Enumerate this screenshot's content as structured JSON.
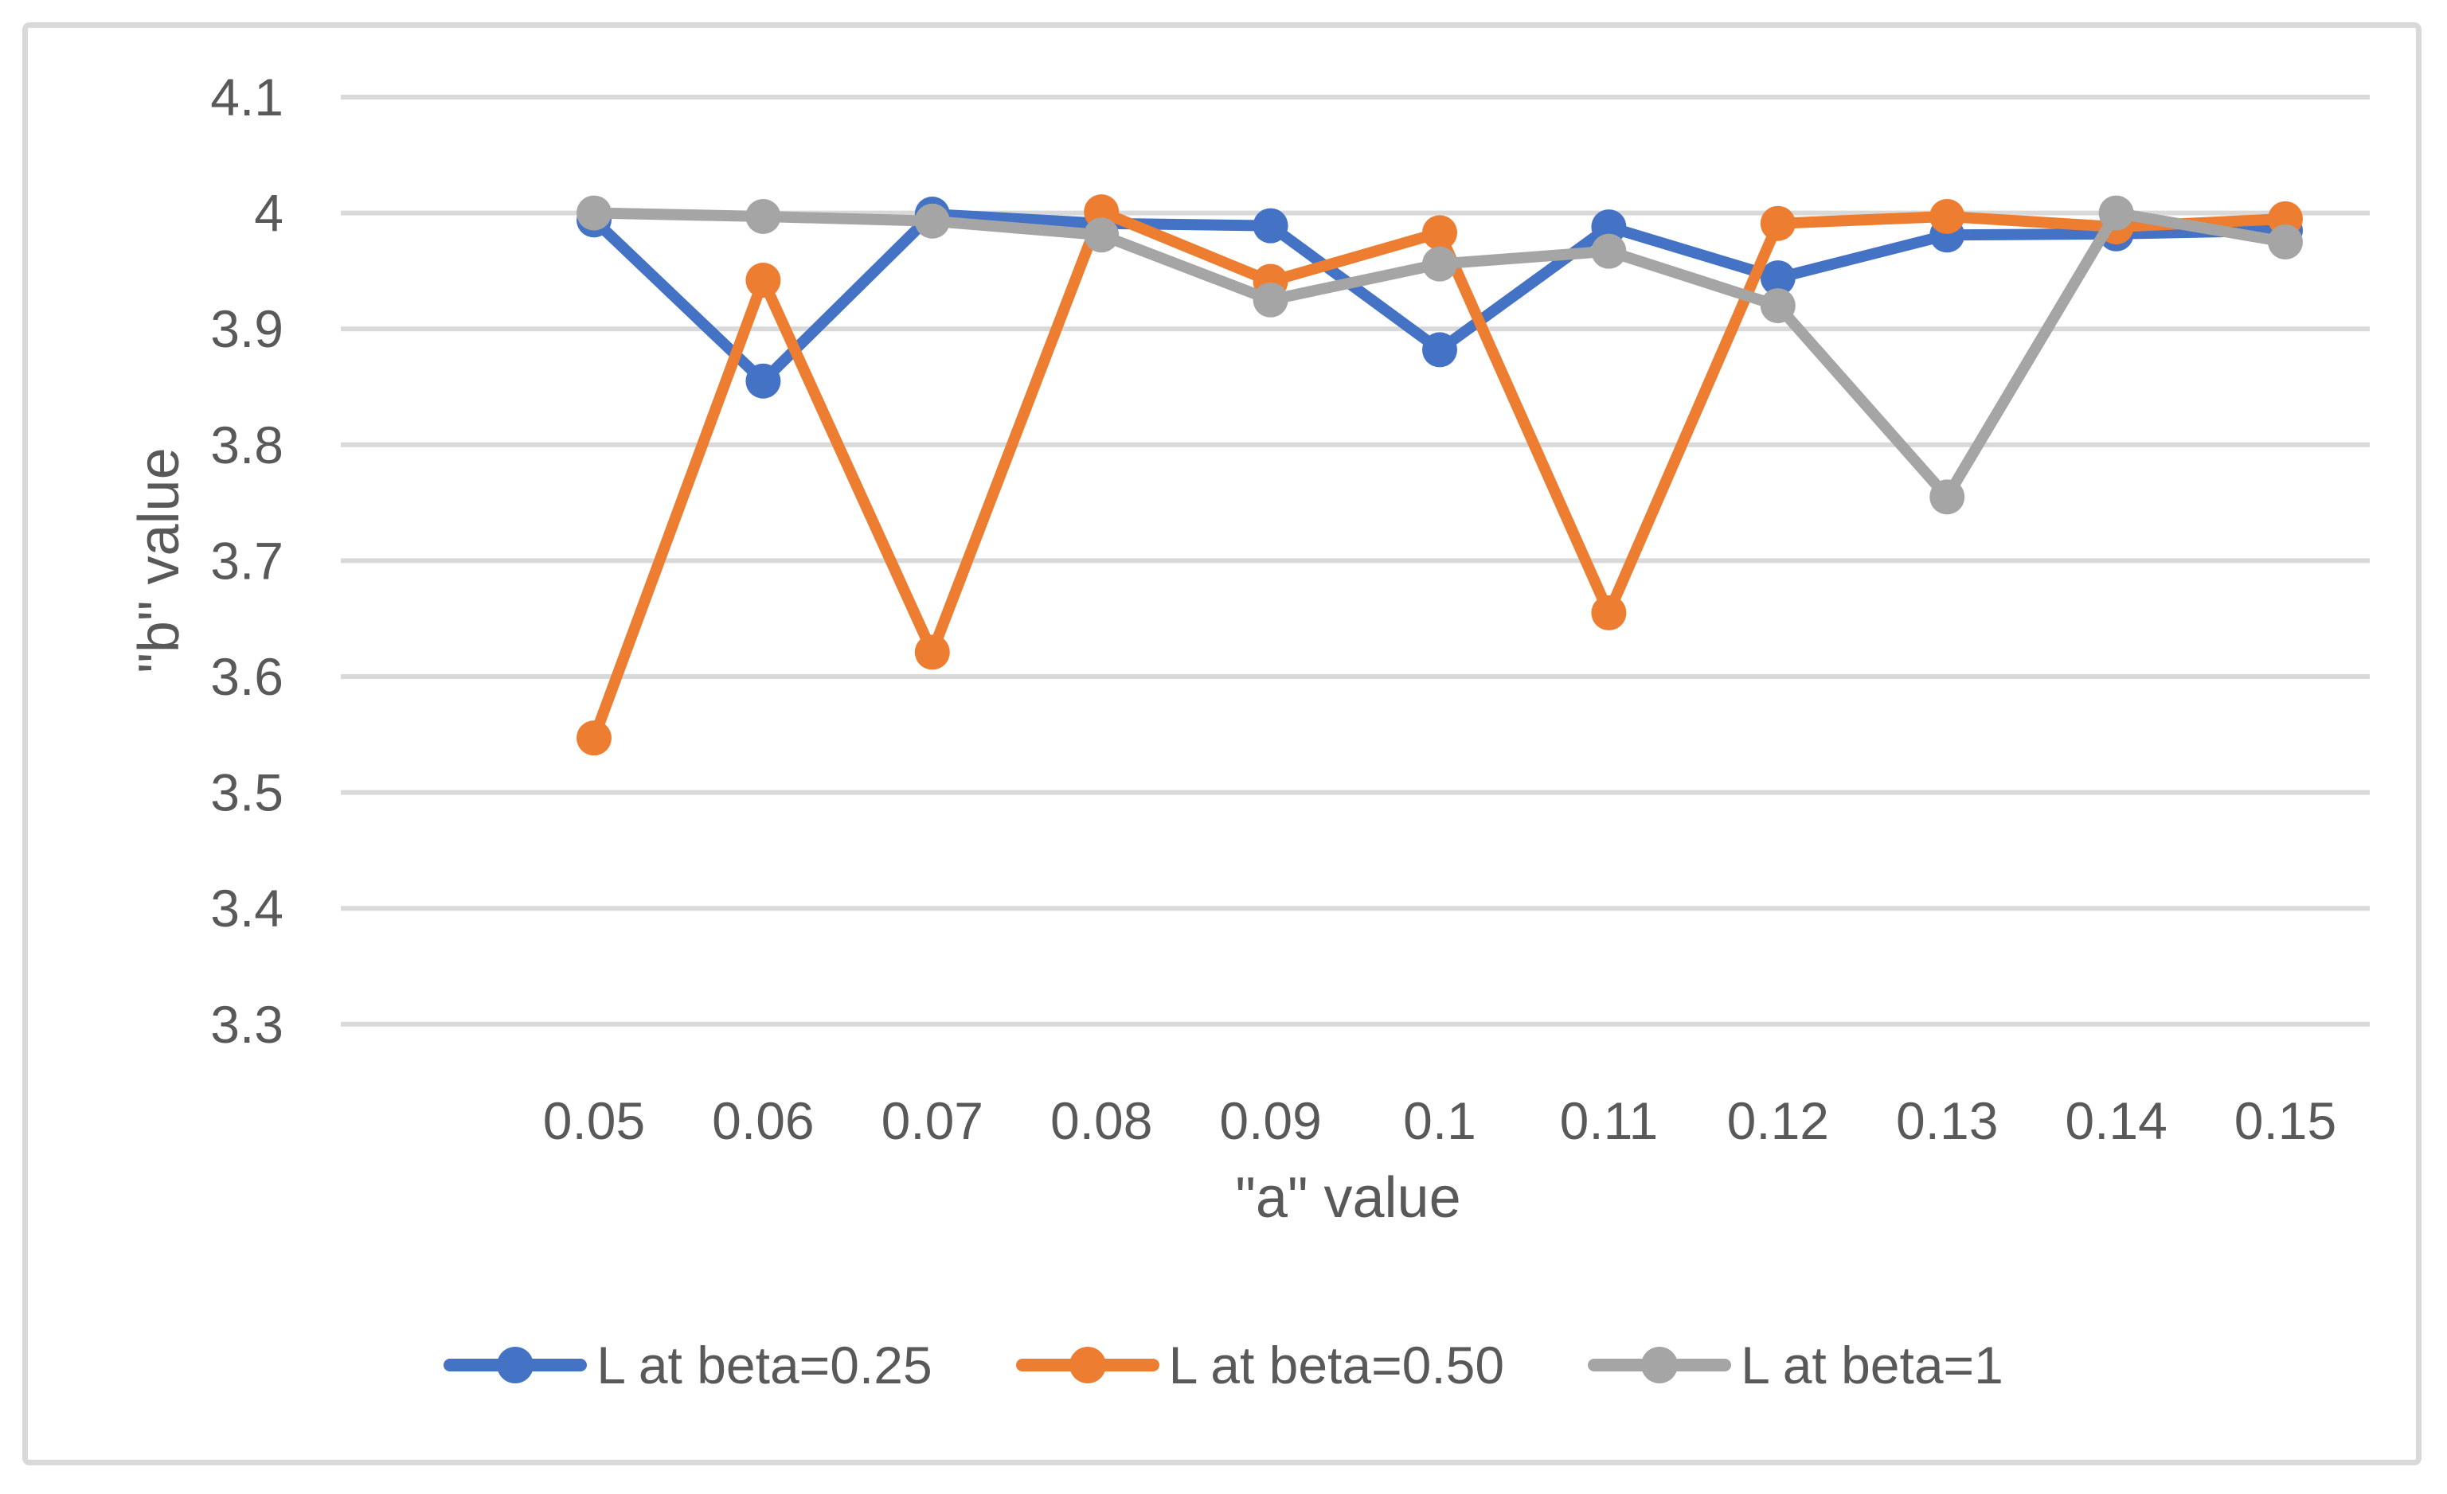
{
  "chart_data": {
    "type": "line",
    "title": "",
    "xlabel": "\"a\" value",
    "ylabel": "\"b\" value",
    "categories": [
      "0.05",
      "0.06",
      "0.07",
      "0.08",
      "0.09",
      "0.1",
      "0.11",
      "0.12",
      "0.13",
      "0.14",
      "0.15"
    ],
    "y_ticks": [
      "4.1",
      "4",
      "3.9",
      "3.8",
      "3.7",
      "3.6",
      "3.5",
      "3.4",
      "3.3"
    ],
    "y_tick_values": [
      4.1,
      4.0,
      3.9,
      3.8,
      3.7,
      3.6,
      3.5,
      3.4,
      3.3
    ],
    "ylim": [
      3.3,
      4.1
    ],
    "grid": true,
    "legend_position": "bottom",
    "series": [
      {
        "name": "L at beta=0.25",
        "color": "#4472C4",
        "values": [
          3.994,
          3.855,
          3.999,
          3.991,
          3.989,
          3.882,
          3.988,
          3.944,
          3.981,
          3.982,
          3.985
        ]
      },
      {
        "name": "L at beta=0.50",
        "color": "#ED7D31",
        "values": [
          3.547,
          3.942,
          3.621,
          4.001,
          3.941,
          3.983,
          3.655,
          3.991,
          3.997,
          3.988,
          3.995
        ]
      },
      {
        "name": "L at beta=1",
        "color": "#A5A5A5",
        "values": [
          4.0,
          3.997,
          3.993,
          3.981,
          3.925,
          3.956,
          3.967,
          3.92,
          3.755,
          4.0,
          3.975
        ]
      }
    ],
    "style": {
      "grid_color": "#D9D9D9",
      "text_color": "#595959",
      "border_color": "#D9D9D9",
      "background": "#FFFFFF"
    }
  }
}
